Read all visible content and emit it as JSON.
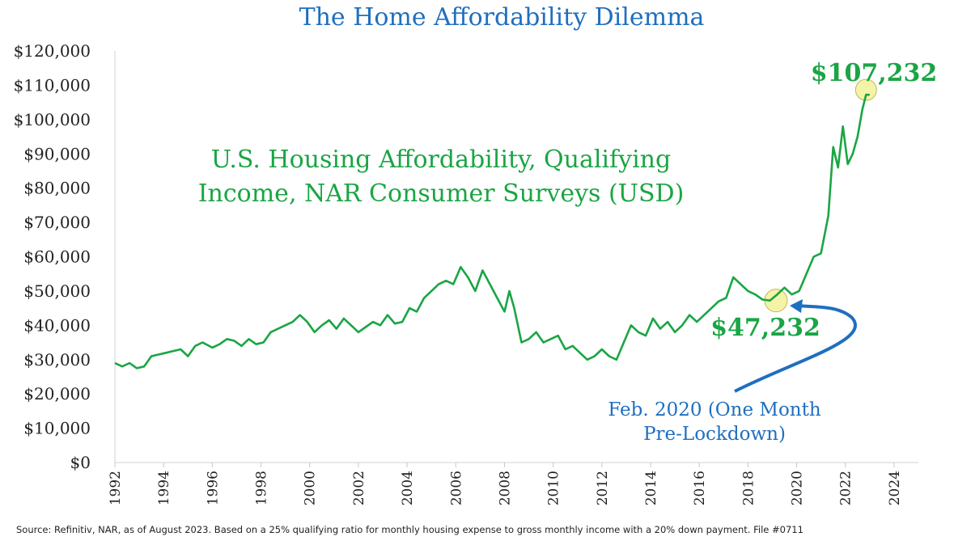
{
  "title": "The Home Affordability Dilemma",
  "source": "Source: Refinitiv, NAR, as of August 2023. Based on a 25% qualifying ratio for monthly housing expense to gross monthly income with a 20% down payment. File #0711",
  "colors": {
    "title": "#1f6fc0",
    "line": "#1aa544",
    "highlight": "#f4f3a8",
    "arrow": "#1f6fc0"
  },
  "chart_data": {
    "type": "line",
    "series_label_line1": "U.S. Housing Affordability, Qualifying",
    "series_label_line2": "Income, NAR Consumer Surveys (USD)",
    "ylim": [
      0,
      120000
    ],
    "yticks": [
      0,
      10000,
      20000,
      30000,
      40000,
      50000,
      60000,
      70000,
      80000,
      90000,
      100000,
      110000,
      120000
    ],
    "ytick_labels": [
      "$0",
      "$10,000",
      "$20,000",
      "$30,000",
      "$40,000",
      "$50,000",
      "$60,000",
      "$70,000",
      "$80,000",
      "$90,000",
      "$100,000",
      "$110,000",
      "$120,000"
    ],
    "xlim": [
      1992,
      2025
    ],
    "xticks": [
      1992,
      1994,
      1996,
      1998,
      2000,
      2002,
      2004,
      2006,
      2008,
      2010,
      2012,
      2014,
      2016,
      2018,
      2020,
      2022,
      2024
    ],
    "xtick_labels": [
      "1992",
      "1994",
      "1996",
      "1998",
      "2000",
      "2002",
      "2004",
      "2006",
      "2008",
      "2010",
      "2012",
      "2014",
      "2016",
      "2018",
      "2020",
      "2022",
      "2024"
    ],
    "x": [
      1992.0,
      1992.3,
      1992.6,
      1992.9,
      1993.2,
      1993.5,
      1993.8,
      1994.1,
      1994.4,
      1994.7,
      1995.0,
      1995.3,
      1995.6,
      1996.0,
      1996.3,
      1996.6,
      1996.9,
      1997.2,
      1997.5,
      1997.8,
      1998.1,
      1998.4,
      1998.7,
      1999.0,
      1999.3,
      1999.6,
      1999.9,
      2000.2,
      2000.5,
      2000.8,
      2001.1,
      2001.4,
      2001.7,
      2002.0,
      2002.3,
      2002.6,
      2002.9,
      2003.2,
      2003.5,
      2003.8,
      2004.1,
      2004.4,
      2004.7,
      2005.0,
      2005.3,
      2005.6,
      2005.9,
      2006.2,
      2006.5,
      2006.8,
      2007.1,
      2007.4,
      2007.7,
      2008.0,
      2008.2,
      2008.4,
      2008.7,
      2009.0,
      2009.3,
      2009.6,
      2009.9,
      2010.2,
      2010.5,
      2010.8,
      2011.1,
      2011.4,
      2011.7,
      2012.0,
      2012.3,
      2012.6,
      2012.9,
      2013.2,
      2013.5,
      2013.8,
      2014.1,
      2014.4,
      2014.7,
      2015.0,
      2015.3,
      2015.6,
      2015.9,
      2016.2,
      2016.5,
      2016.8,
      2017.1,
      2017.4,
      2017.7,
      2018.0,
      2018.3,
      2018.6,
      2018.9,
      2019.2,
      2019.5,
      2019.8,
      2020.1,
      2020.4,
      2020.7,
      2021.0,
      2021.3,
      2021.5,
      2021.7,
      2021.9,
      2022.1,
      2022.3,
      2022.5,
      2022.7,
      2022.85,
      2023.0
    ],
    "values": [
      29000,
      28000,
      29000,
      27500,
      28000,
      31000,
      31500,
      32000,
      32500,
      33000,
      31000,
      34000,
      35000,
      33500,
      34500,
      36000,
      35500,
      34000,
      36000,
      34500,
      35000,
      38000,
      39000,
      40000,
      41000,
      43000,
      41000,
      38000,
      40000,
      41500,
      39000,
      42000,
      40000,
      38000,
      39500,
      41000,
      40000,
      43000,
      40500,
      41000,
      45000,
      44000,
      48000,
      50000,
      52000,
      53000,
      52000,
      57000,
      54000,
      50000,
      56000,
      52000,
      48000,
      44000,
      50000,
      45000,
      35000,
      36000,
      38000,
      35000,
      36000,
      37000,
      33000,
      34000,
      32000,
      30000,
      31000,
      33000,
      31000,
      30000,
      35000,
      40000,
      38000,
      37000,
      42000,
      39000,
      41000,
      38000,
      40000,
      43000,
      41000,
      43000,
      45000,
      47000,
      48000,
      54000,
      52000,
      50000,
      49000,
      47500,
      47232,
      49000,
      51000,
      49000,
      50000,
      55000,
      60000,
      61000,
      72000,
      92000,
      86000,
      98000,
      87000,
      90000,
      95000,
      103000,
      107232,
      107232
    ],
    "callout_peak": {
      "label": "$107,232",
      "x": 2022.85,
      "y": 107232
    },
    "callout_feb2020": {
      "label": "$47,232",
      "x": 2019.15,
      "y": 47232
    },
    "arrow_note_line1": "Feb. 2020 (One Month",
    "arrow_note_line2": "Pre-Lockdown)"
  }
}
